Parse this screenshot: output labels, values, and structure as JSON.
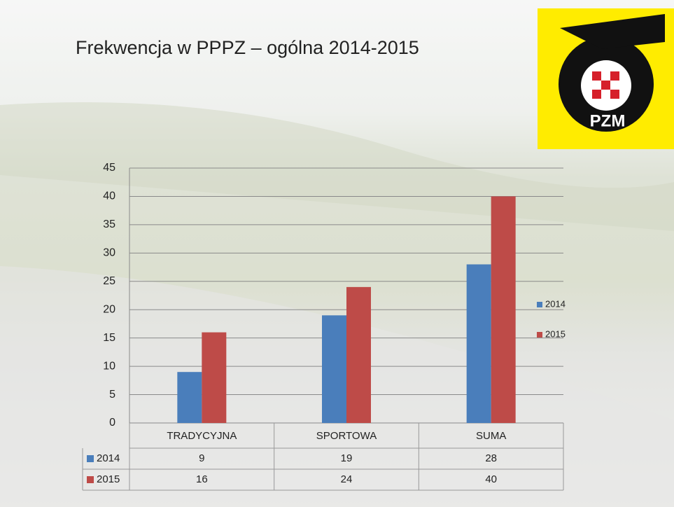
{
  "chart_data": {
    "type": "bar",
    "title": "Frekwencja w PPPZ – ogólna 2014-2015",
    "categories": [
      "TRADYCYJNA",
      "SPORTOWA",
      "SUMA"
    ],
    "series": [
      {
        "name": "2014",
        "color": "#4a7ebb",
        "values": [
          9,
          19,
          28
        ]
      },
      {
        "name": "2015",
        "color": "#be4b48",
        "values": [
          16,
          24,
          40
        ]
      }
    ],
    "ylim": [
      0,
      45
    ],
    "yticks": [
      0,
      5,
      10,
      15,
      20,
      25,
      30,
      35,
      40,
      45
    ],
    "grid": true,
    "legend": "right",
    "data_table": true
  },
  "logo": {
    "text": "PZM"
  }
}
